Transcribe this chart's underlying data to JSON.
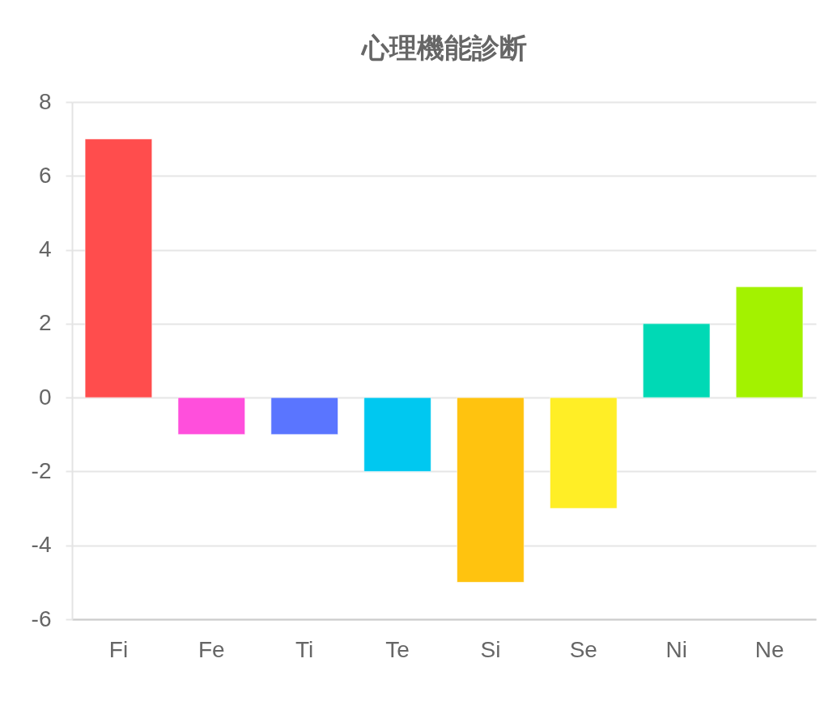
{
  "chart_data": {
    "type": "bar",
    "title": "心理機能診断",
    "categories": [
      "Fi",
      "Fe",
      "Ti",
      "Te",
      "Si",
      "Se",
      "Ni",
      "Ne"
    ],
    "values": [
      7,
      -1,
      -1,
      -2,
      -5,
      -3,
      2,
      3
    ],
    "colors": [
      "#ff4d4d",
      "#ff4fdc",
      "#5a75ff",
      "#00c8f0",
      "#ffc30f",
      "#ffee26",
      "#00d9b5",
      "#a3f200"
    ],
    "ylim": [
      -6,
      8
    ],
    "yticks": [
      -6,
      -4,
      -2,
      0,
      2,
      4,
      6,
      8
    ],
    "grid": "y"
  }
}
